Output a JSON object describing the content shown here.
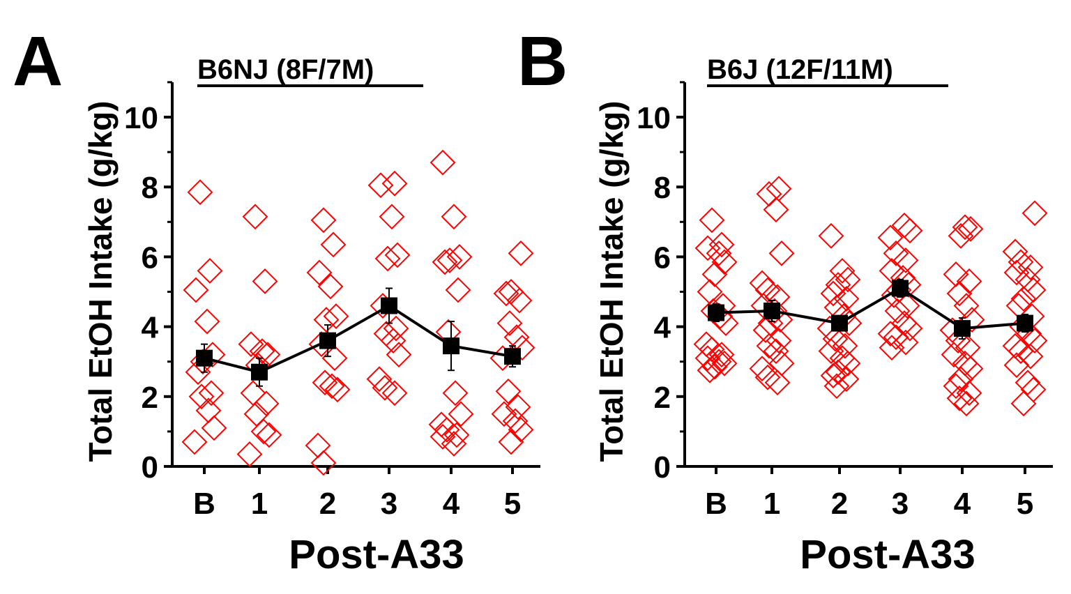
{
  "colors": {
    "individual": "#ff0000",
    "mean": "#000000"
  },
  "chart_data": [
    {
      "type": "scatter",
      "panel_letter": "A",
      "title": "B6NJ (8F/7M)",
      "xlabel": "Post-A33",
      "ylabel": "Total EtOH Intake (g/kg)",
      "categories": [
        "B",
        "1",
        "2",
        "3",
        "4",
        "5"
      ],
      "yticks": [
        "0",
        "2",
        "4",
        "6",
        "8",
        "10"
      ],
      "ylim": [
        0,
        11
      ],
      "series": [
        {
          "name": "individual",
          "marker": "open-diamond",
          "points": [
            [
              0,
              7.85
            ],
            [
              0,
              5.6
            ],
            [
              0,
              5.05
            ],
            [
              0,
              4.15
            ],
            [
              0,
              3.2
            ],
            [
              0,
              3.0
            ],
            [
              0,
              2.7
            ],
            [
              0,
              2.1
            ],
            [
              0,
              2.0
            ],
            [
              0,
              1.6
            ],
            [
              0,
              1.1
            ],
            [
              0,
              0.7
            ],
            [
              1,
              7.15
            ],
            [
              1,
              5.3
            ],
            [
              1,
              3.5
            ],
            [
              1,
              3.3
            ],
            [
              1,
              3.2
            ],
            [
              1,
              2.9
            ],
            [
              1,
              2.1
            ],
            [
              1,
              1.8
            ],
            [
              1,
              1.5
            ],
            [
              1,
              1.0
            ],
            [
              1,
              0.9
            ],
            [
              1,
              0.35
            ],
            [
              2,
              7.05
            ],
            [
              2,
              6.35
            ],
            [
              2,
              5.55
            ],
            [
              2,
              5.15
            ],
            [
              2,
              4.3
            ],
            [
              2,
              4.2
            ],
            [
              2,
              3.5
            ],
            [
              2,
              3.1
            ],
            [
              2,
              2.4
            ],
            [
              2,
              2.3
            ],
            [
              2,
              2.2
            ],
            [
              2,
              0.6
            ],
            [
              2,
              0.1
            ],
            [
              3,
              8.1
            ],
            [
              3,
              8.05
            ],
            [
              3,
              7.15
            ],
            [
              3,
              6.05
            ],
            [
              3,
              5.95
            ],
            [
              3,
              4.6
            ],
            [
              3,
              3.95
            ],
            [
              3,
              3.8
            ],
            [
              3,
              3.6
            ],
            [
              3,
              3.2
            ],
            [
              3,
              2.5
            ],
            [
              3,
              2.25
            ],
            [
              3,
              2.1
            ],
            [
              4,
              8.7
            ],
            [
              4,
              7.15
            ],
            [
              4,
              6.0
            ],
            [
              4,
              5.9
            ],
            [
              4,
              5.85
            ],
            [
              4,
              5.05
            ],
            [
              4,
              3.85
            ],
            [
              4,
              2.1
            ],
            [
              4,
              1.5
            ],
            [
              4,
              1.2
            ],
            [
              4,
              1.05
            ],
            [
              4,
              0.9
            ],
            [
              4,
              0.85
            ],
            [
              4,
              0.65
            ],
            [
              5,
              6.1
            ],
            [
              5,
              5.0
            ],
            [
              5,
              4.95
            ],
            [
              5,
              4.75
            ],
            [
              5,
              4.1
            ],
            [
              5,
              3.7
            ],
            [
              5,
              3.4
            ],
            [
              5,
              3.1
            ],
            [
              5,
              2.15
            ],
            [
              5,
              1.7
            ],
            [
              5,
              1.5
            ],
            [
              5,
              1.3
            ],
            [
              5,
              1.05
            ],
            [
              5,
              0.7
            ]
          ]
        },
        {
          "name": "mean",
          "marker": "filled-square",
          "values": [
            3.1,
            2.7,
            3.6,
            4.6,
            3.45,
            3.15
          ],
          "sem": [
            0.4,
            0.4,
            0.45,
            0.5,
            0.7,
            0.3
          ]
        }
      ]
    },
    {
      "type": "scatter",
      "panel_letter": "B",
      "title": "B6J (12F/11M)",
      "xlabel": "Post-A33",
      "ylabel": "Total EtOH Intake (g/kg)",
      "categories": [
        "B",
        "1",
        "2",
        "3",
        "4",
        "5"
      ],
      "yticks": [
        "0",
        "2",
        "4",
        "6",
        "8",
        "10"
      ],
      "ylim": [
        0,
        11
      ],
      "series": [
        {
          "name": "individual",
          "marker": "open-diamond",
          "points": [
            [
              0,
              7.05
            ],
            [
              0,
              6.35
            ],
            [
              0,
              6.25
            ],
            [
              0,
              6.1
            ],
            [
              0,
              5.85
            ],
            [
              0,
              5.5
            ],
            [
              0,
              5.0
            ],
            [
              0,
              4.6
            ],
            [
              0,
              4.45
            ],
            [
              0,
              4.3
            ],
            [
              0,
              4.1
            ],
            [
              0,
              3.5
            ],
            [
              0,
              3.35
            ],
            [
              0,
              3.2
            ],
            [
              0,
              3.1
            ],
            [
              0,
              3.0
            ],
            [
              0,
              2.95
            ],
            [
              0,
              2.85
            ],
            [
              0,
              2.75
            ],
            [
              1,
              7.95
            ],
            [
              1,
              7.8
            ],
            [
              1,
              7.35
            ],
            [
              1,
              6.1
            ],
            [
              1,
              5.25
            ],
            [
              1,
              5.05
            ],
            [
              1,
              4.85
            ],
            [
              1,
              4.6
            ],
            [
              1,
              4.45
            ],
            [
              1,
              4.2
            ],
            [
              1,
              4.1
            ],
            [
              1,
              3.9
            ],
            [
              1,
              3.6
            ],
            [
              1,
              3.45
            ],
            [
              1,
              3.3
            ],
            [
              1,
              2.95
            ],
            [
              1,
              2.8
            ],
            [
              1,
              2.55
            ],
            [
              1,
              2.4
            ],
            [
              2,
              6.6
            ],
            [
              2,
              5.6
            ],
            [
              2,
              5.35
            ],
            [
              2,
              5.2
            ],
            [
              2,
              4.95
            ],
            [
              2,
              4.8
            ],
            [
              2,
              4.55
            ],
            [
              2,
              4.3
            ],
            [
              2,
              4.1
            ],
            [
              2,
              3.95
            ],
            [
              2,
              3.65
            ],
            [
              2,
              3.45
            ],
            [
              2,
              3.3
            ],
            [
              2,
              3.1
            ],
            [
              2,
              2.95
            ],
            [
              2,
              2.7
            ],
            [
              2,
              2.6
            ],
            [
              2,
              2.5
            ],
            [
              2,
              2.3
            ],
            [
              3,
              6.9
            ],
            [
              3,
              6.75
            ],
            [
              3,
              6.55
            ],
            [
              3,
              6.1
            ],
            [
              3,
              5.9
            ],
            [
              3,
              5.6
            ],
            [
              3,
              5.4
            ],
            [
              3,
              5.2
            ],
            [
              3,
              5.05
            ],
            [
              3,
              4.9
            ],
            [
              3,
              4.6
            ],
            [
              3,
              4.45
            ],
            [
              3,
              4.1
            ],
            [
              3,
              3.95
            ],
            [
              3,
              3.8
            ],
            [
              3,
              3.7
            ],
            [
              3,
              3.55
            ],
            [
              3,
              3.4
            ],
            [
              4,
              6.85
            ],
            [
              4,
              6.8
            ],
            [
              4,
              6.6
            ],
            [
              4,
              5.5
            ],
            [
              4,
              5.3
            ],
            [
              4,
              4.95
            ],
            [
              4,
              4.6
            ],
            [
              4,
              4.2
            ],
            [
              4,
              3.9
            ],
            [
              4,
              3.6
            ],
            [
              4,
              3.4
            ],
            [
              4,
              3.2
            ],
            [
              4,
              2.95
            ],
            [
              4,
              2.8
            ],
            [
              4,
              2.5
            ],
            [
              4,
              2.3
            ],
            [
              4,
              2.1
            ],
            [
              4,
              1.95
            ],
            [
              4,
              1.8
            ],
            [
              5,
              7.25
            ],
            [
              5,
              6.15
            ],
            [
              5,
              5.85
            ],
            [
              5,
              5.7
            ],
            [
              5,
              5.55
            ],
            [
              5,
              5.35
            ],
            [
              5,
              5.05
            ],
            [
              5,
              4.8
            ],
            [
              5,
              4.6
            ],
            [
              5,
              4.3
            ],
            [
              5,
              4.0
            ],
            [
              5,
              3.8
            ],
            [
              5,
              3.6
            ],
            [
              5,
              3.45
            ],
            [
              5,
              3.3
            ],
            [
              5,
              3.15
            ],
            [
              5,
              2.9
            ],
            [
              5,
              2.4
            ],
            [
              5,
              2.2
            ],
            [
              5,
              1.8
            ]
          ]
        },
        {
          "name": "mean",
          "marker": "filled-square",
          "values": [
            4.4,
            4.45,
            4.1,
            5.1,
            3.95,
            4.1
          ],
          "sem": [
            0.25,
            0.3,
            0.2,
            0.25,
            0.3,
            0.25
          ]
        }
      ]
    }
  ]
}
